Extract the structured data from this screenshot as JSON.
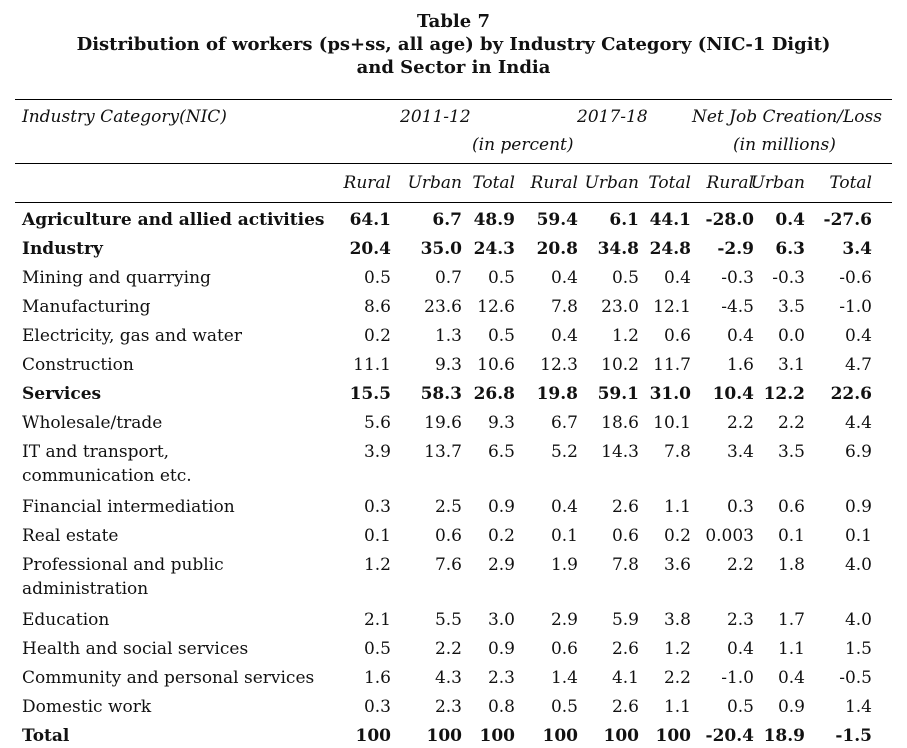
{
  "caption": {
    "line1": "Table 7",
    "line2": "Distribution of workers (ps+ss, all age) by Industry Category (NIC-1 Digit)",
    "line3": "and Sector in India"
  },
  "header": {
    "category": "Industry Category(NIC)",
    "y1": "2011-12",
    "y2": "2017-18",
    "net": "Net Job Creation/Loss",
    "unit1": "(in percent)",
    "unit2": "(in millions)",
    "sub": [
      "Rural",
      "Urban",
      "Total",
      "Rural",
      "Urban",
      "Total",
      "Rural",
      "Urban",
      "Total"
    ]
  },
  "rows": [
    {
      "label": [
        "Agriculture and allied activities"
      ],
      "bold": true,
      "v": [
        "64.1",
        "6.7",
        "48.9",
        "59.4",
        "6.1",
        "44.1",
        "-28.0",
        "0.4",
        "-27.6"
      ]
    },
    {
      "label": [
        "Industry"
      ],
      "bold": true,
      "v": [
        "20.4",
        "35.0",
        "24.3",
        "20.8",
        "34.8",
        "24.8",
        "-2.9",
        "6.3",
        "3.4"
      ]
    },
    {
      "label": [
        "Mining and quarrying"
      ],
      "bold": false,
      "v": [
        "0.5",
        "0.7",
        "0.5",
        "0.4",
        "0.5",
        "0.4",
        "-0.3",
        "-0.3",
        "-0.6"
      ]
    },
    {
      "label": [
        "Manufacturing"
      ],
      "bold": false,
      "v": [
        "8.6",
        "23.6",
        "12.6",
        "7.8",
        "23.0",
        "12.1",
        "-4.5",
        "3.5",
        "-1.0"
      ]
    },
    {
      "label": [
        " Electricity, gas and water"
      ],
      "bold": false,
      "v": [
        "0.2",
        "1.3",
        "0.5",
        "0.4",
        "1.2",
        "0.6",
        "0.4",
        "0.0",
        "0.4"
      ]
    },
    {
      "label": [
        "Construction"
      ],
      "bold": false,
      "v": [
        "11.1",
        "9.3",
        "10.6",
        "12.3",
        "10.2",
        "11.7",
        "1.6",
        "3.1",
        "4.7"
      ]
    },
    {
      "label": [
        "Services"
      ],
      "bold": true,
      "v": [
        "15.5",
        "58.3",
        "26.8",
        "19.8",
        "59.1",
        "31.0",
        "10.4",
        "12.2",
        "22.6"
      ]
    },
    {
      "label": [
        "Wholesale/trade"
      ],
      "bold": false,
      "v": [
        "5.6",
        "19.6",
        "9.3",
        "6.7",
        "18.6",
        "10.1",
        "2.2",
        "2.2",
        "4.4"
      ]
    },
    {
      "label": [
        "IT and transport,",
        "communication etc."
      ],
      "bold": false,
      "v": [
        "3.9",
        "13.7",
        "6.5",
        "5.2",
        "14.3",
        "7.8",
        "3.4",
        "3.5",
        "6.9"
      ]
    },
    {
      "label": [
        "Financial intermediation"
      ],
      "bold": false,
      "v": [
        "0.3",
        "2.5",
        "0.9",
        "0.4",
        "2.6",
        "1.1",
        "0.3",
        "0.6",
        "0.9"
      ]
    },
    {
      "label": [
        "Real estate"
      ],
      "bold": false,
      "v": [
        "0.1",
        "0.6",
        "0.2",
        "0.1",
        "0.6",
        "0.2",
        "0.003",
        "0.1",
        "0.1"
      ]
    },
    {
      "label": [
        "Professional and public",
        "administration"
      ],
      "bold": false,
      "v": [
        "1.2",
        "7.6",
        "2.9",
        "1.9",
        "7.8",
        "3.6",
        "2.2",
        "1.8",
        "4.0"
      ]
    },
    {
      "label": [
        "Education"
      ],
      "bold": false,
      "v": [
        "2.1",
        "5.5",
        "3.0",
        "2.9",
        "5.9",
        "3.8",
        "2.3",
        "1.7",
        "4.0"
      ]
    },
    {
      "label": [
        "Health and social services"
      ],
      "bold": false,
      "v": [
        "0.5",
        "2.2",
        "0.9",
        "0.6",
        "2.6",
        "1.2",
        "0.4",
        "1.1",
        "1.5"
      ]
    },
    {
      "label": [
        "Community and personal services"
      ],
      "bold": false,
      "v": [
        "1.6",
        "4.3",
        "2.3",
        "1.4",
        "4.1",
        "2.2",
        "-1.0",
        "0.4",
        "-0.5"
      ]
    },
    {
      "label": [
        "Domestic work"
      ],
      "bold": false,
      "v": [
        "0.3",
        "2.3",
        "0.8",
        "0.5",
        "2.6",
        "1.1",
        "0.5",
        "0.9",
        "1.4"
      ]
    },
    {
      "label": [
        "Total"
      ],
      "bold": true,
      "v": [
        "100",
        "100",
        "100",
        "100",
        "100",
        "100",
        "-20.4",
        "18.9",
        "-1.5"
      ]
    }
  ]
}
